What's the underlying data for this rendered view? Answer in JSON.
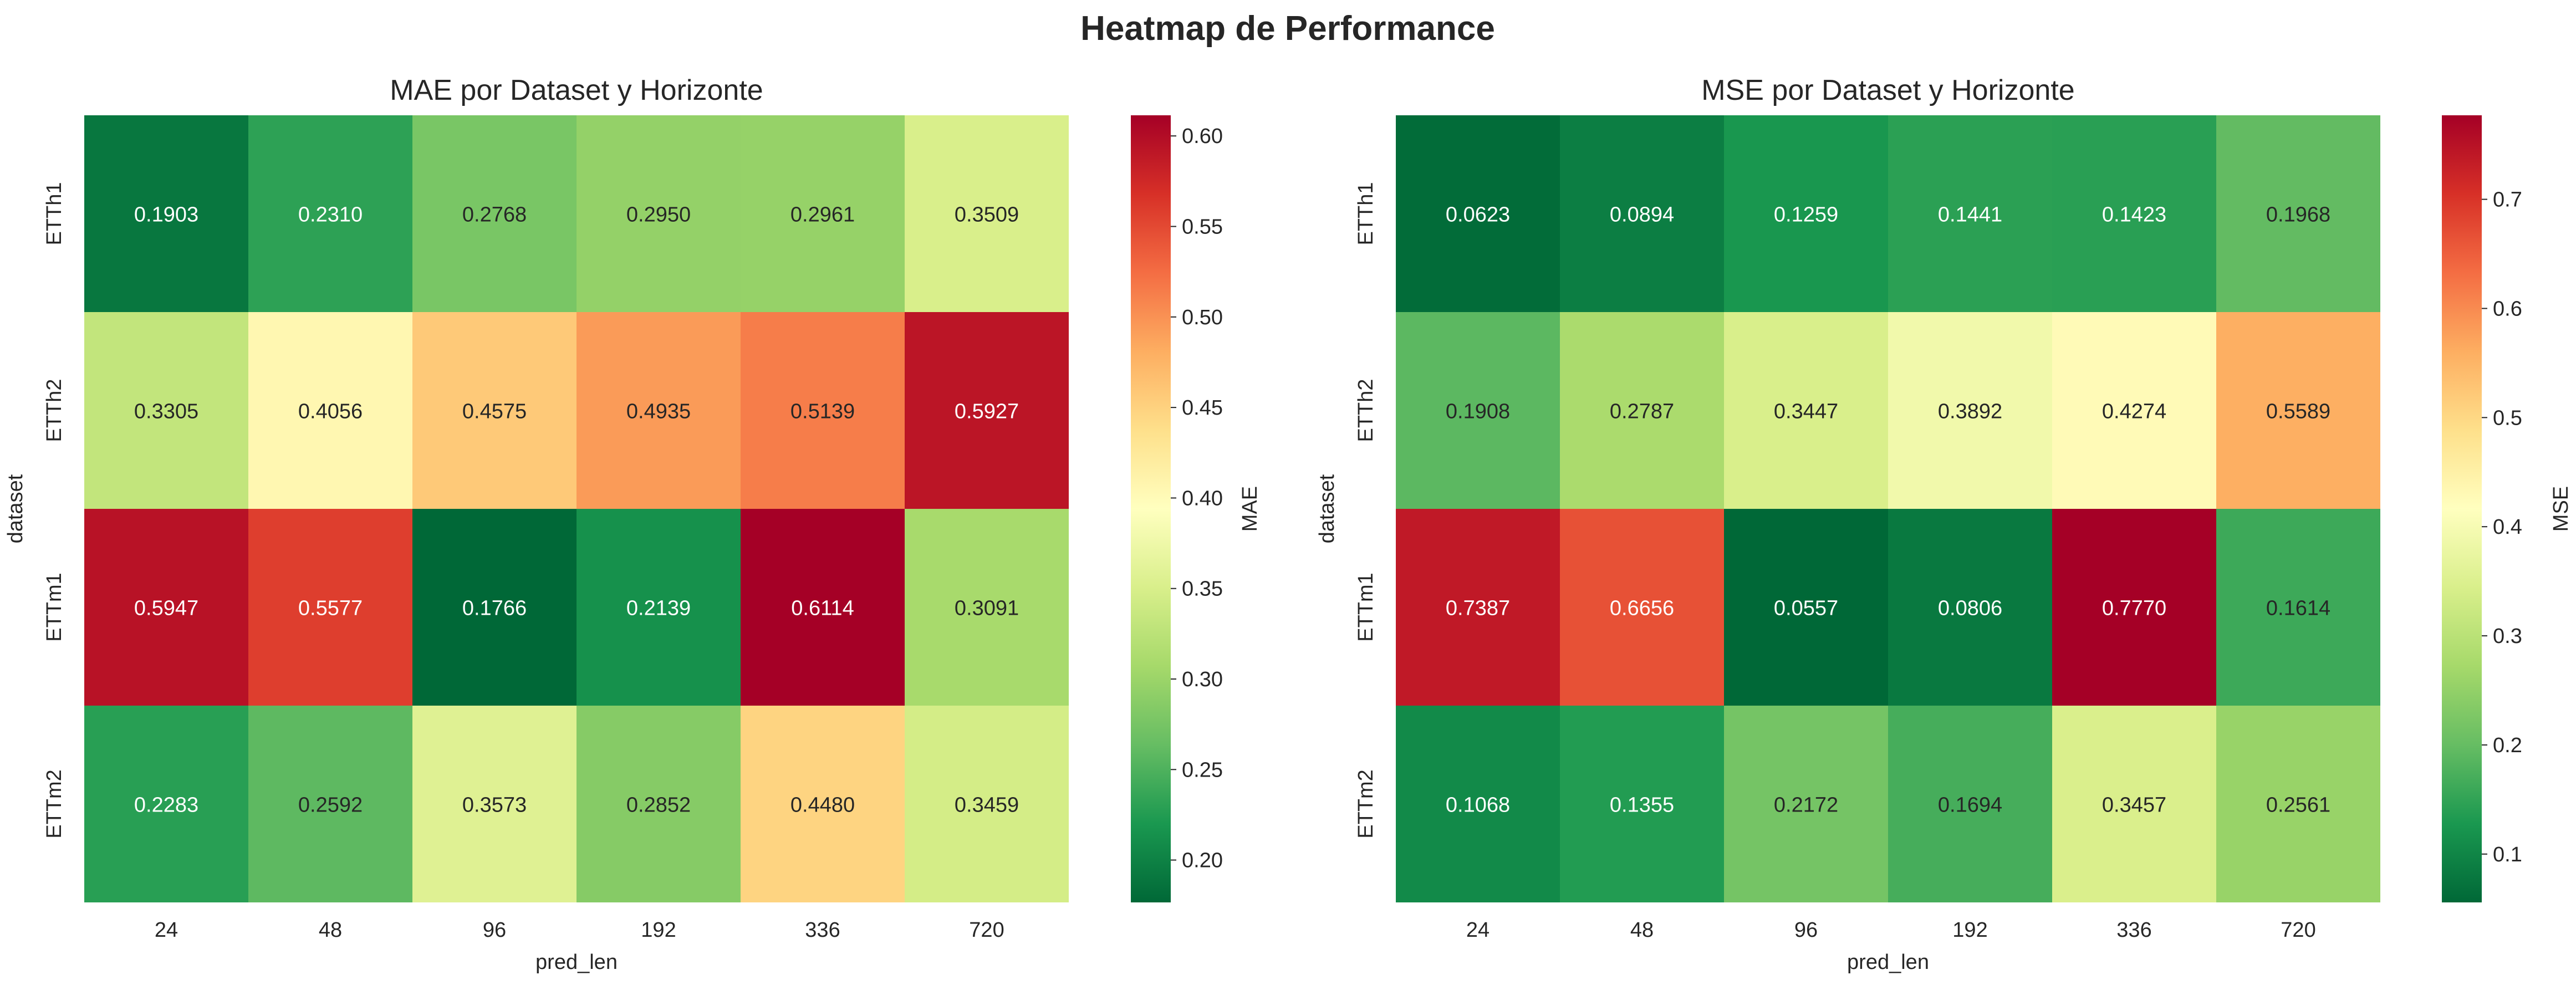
{
  "figure": {
    "suptitle": "Heatmap de Performance"
  },
  "chart_data": [
    {
      "type": "heatmap",
      "title": "MAE por Dataset y Horizonte",
      "xlabel": "pred_len",
      "ylabel": "dataset",
      "x_categories": [
        "24",
        "48",
        "96",
        "192",
        "336",
        "720"
      ],
      "y_categories": [
        "ETTh1",
        "ETTh2",
        "ETTm1",
        "ETTm2"
      ],
      "values": [
        [
          0.1903,
          0.231,
          0.2768,
          0.295,
          0.2961,
          0.3509
        ],
        [
          0.3305,
          0.4056,
          0.4575,
          0.4935,
          0.5139,
          0.5927
        ],
        [
          0.5947,
          0.5577,
          0.1766,
          0.2139,
          0.6114,
          0.3091
        ],
        [
          0.2283,
          0.2592,
          0.3573,
          0.2852,
          0.448,
          0.3459
        ]
      ],
      "value_format": "0.0000",
      "colormap": "RdYlGn_r",
      "colorbar": {
        "label": "MAE",
        "vmin": 0.1766,
        "vmax": 0.6114,
        "ticks": [
          "0.20",
          "0.25",
          "0.30",
          "0.35",
          "0.40",
          "0.45",
          "0.50",
          "0.55",
          "0.60"
        ]
      }
    },
    {
      "type": "heatmap",
      "title": "MSE por Dataset y Horizonte",
      "xlabel": "pred_len",
      "ylabel": "dataset",
      "x_categories": [
        "24",
        "48",
        "96",
        "192",
        "336",
        "720"
      ],
      "y_categories": [
        "ETTh1",
        "ETTh2",
        "ETTm1",
        "ETTm2"
      ],
      "values": [
        [
          0.0623,
          0.0894,
          0.1259,
          0.1441,
          0.1423,
          0.1968
        ],
        [
          0.1908,
          0.2787,
          0.3447,
          0.3892,
          0.4274,
          0.5589
        ],
        [
          0.7387,
          0.6656,
          0.0557,
          0.0806,
          0.777,
          0.1614
        ],
        [
          0.1068,
          0.1355,
          0.2172,
          0.1694,
          0.3457,
          0.2561
        ]
      ],
      "value_format": "0.0000",
      "colormap": "RdYlGn_r",
      "colorbar": {
        "label": "MSE",
        "vmin": 0.0557,
        "vmax": 0.777,
        "ticks": [
          "0.1",
          "0.2",
          "0.3",
          "0.4",
          "0.5",
          "0.6",
          "0.7"
        ]
      }
    }
  ]
}
